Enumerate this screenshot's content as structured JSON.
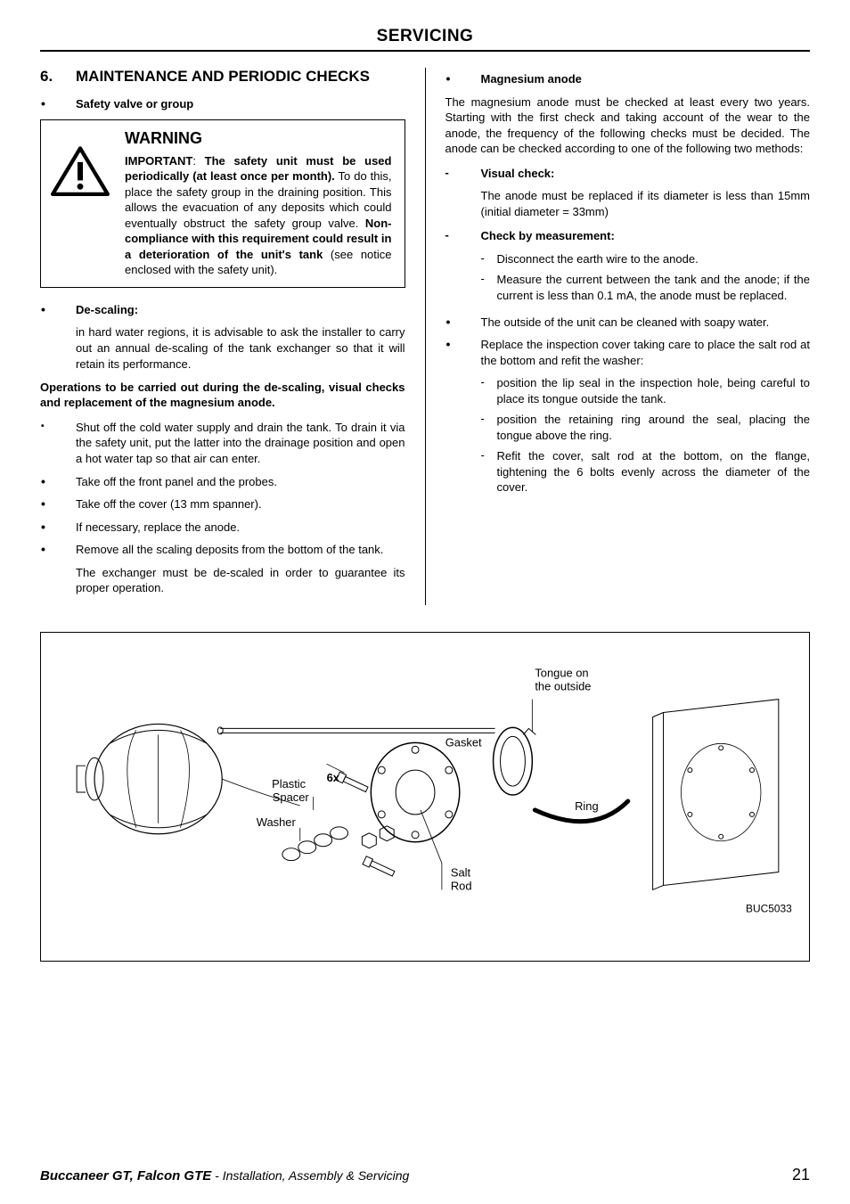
{
  "header": "SERVICING",
  "section": {
    "number": "6.",
    "title": "MAINTENANCE AND PERIODIC CHECKS"
  },
  "left": {
    "safety_valve_label": "Safety valve or group",
    "warning": {
      "title": "WARNING",
      "body_html": "<b>IMPORTANT</b>: <b>The safety unit must be used periodically (at least once per month).</b> To do this, place the safety group in the draining position. This allows the evacuation of any deposits which could eventually obstruct the safety group valve. <b>Non-compliance with this requirement could result in a deterioration of the unit's tank</b> (see notice enclosed with the safety unit)."
    },
    "descaling_label": "De-scaling:",
    "descaling_para": "in hard water regions, it is advisable to ask the installer to carry out an annual de-scaling of the tank exchanger so that it will retain its performance.",
    "ops_heading": "Operations to be carried out during the de-scaling, visual checks and replacement of the magnesium anode.",
    "ops": [
      "Shut off the cold water supply and drain the tank.  To drain it via the safety unit, put the latter into the drainage position and open a hot water tap so that air can enter.",
      "Take off the front panel and the probes.",
      "Take off the cover (13 mm spanner).",
      "If necessary, replace the anode.",
      "Remove all the scaling deposits from the bottom of the tank."
    ],
    "exchanger_para": "The exchanger must be de-scaled in order to guarantee its proper operation."
  },
  "right": {
    "magnesium_label": "Magnesium anode",
    "magnesium_para": "The magnesium anode must be checked at least every two years. Starting with the first check and taking account of the wear to the anode, the frequency of the following checks must be decided.  The anode can be checked according to one of the following two methods:",
    "visual_label": "Visual check:",
    "visual_text": "The anode must be replaced if its diameter is less than 15mm (initial diameter = 33mm)",
    "measure_label": "Check by measurement:",
    "measure_items": [
      "Disconnect the earth wire to the anode.",
      "Measure the current between the tank and the anode; if the current is less than 0.1 mA, the anode must be replaced."
    ],
    "clean_text": "The outside of the unit can be cleaned with soapy water.",
    "inspection_text": "Replace the inspection cover taking care to place the salt rod at the bottom and refit the washer:",
    "refit_items": [
      "position the lip seal in the inspection hole, being careful to place its tongue outside the tank.",
      "position the retaining ring around the seal, placing the tongue above the ring.",
      "Refit the cover, salt rod at the bottom, on the flange, tightening the 6 bolts evenly across the diameter of the cover."
    ]
  },
  "diagram": {
    "labels": {
      "tongue": "Tongue on\nthe outside",
      "gasket": "Gasket",
      "ring": "Ring",
      "plastic_spacer": "Plastic\nSpacer",
      "washer": "Washer",
      "salt_rod": "Salt\nRod",
      "six_x": "6x",
      "code": "BUC5033"
    }
  },
  "footer": {
    "product": "Buccaneer GT, Falcon GTE",
    "suffix": " - Installation, Assembly & Servicing",
    "page": "21"
  }
}
